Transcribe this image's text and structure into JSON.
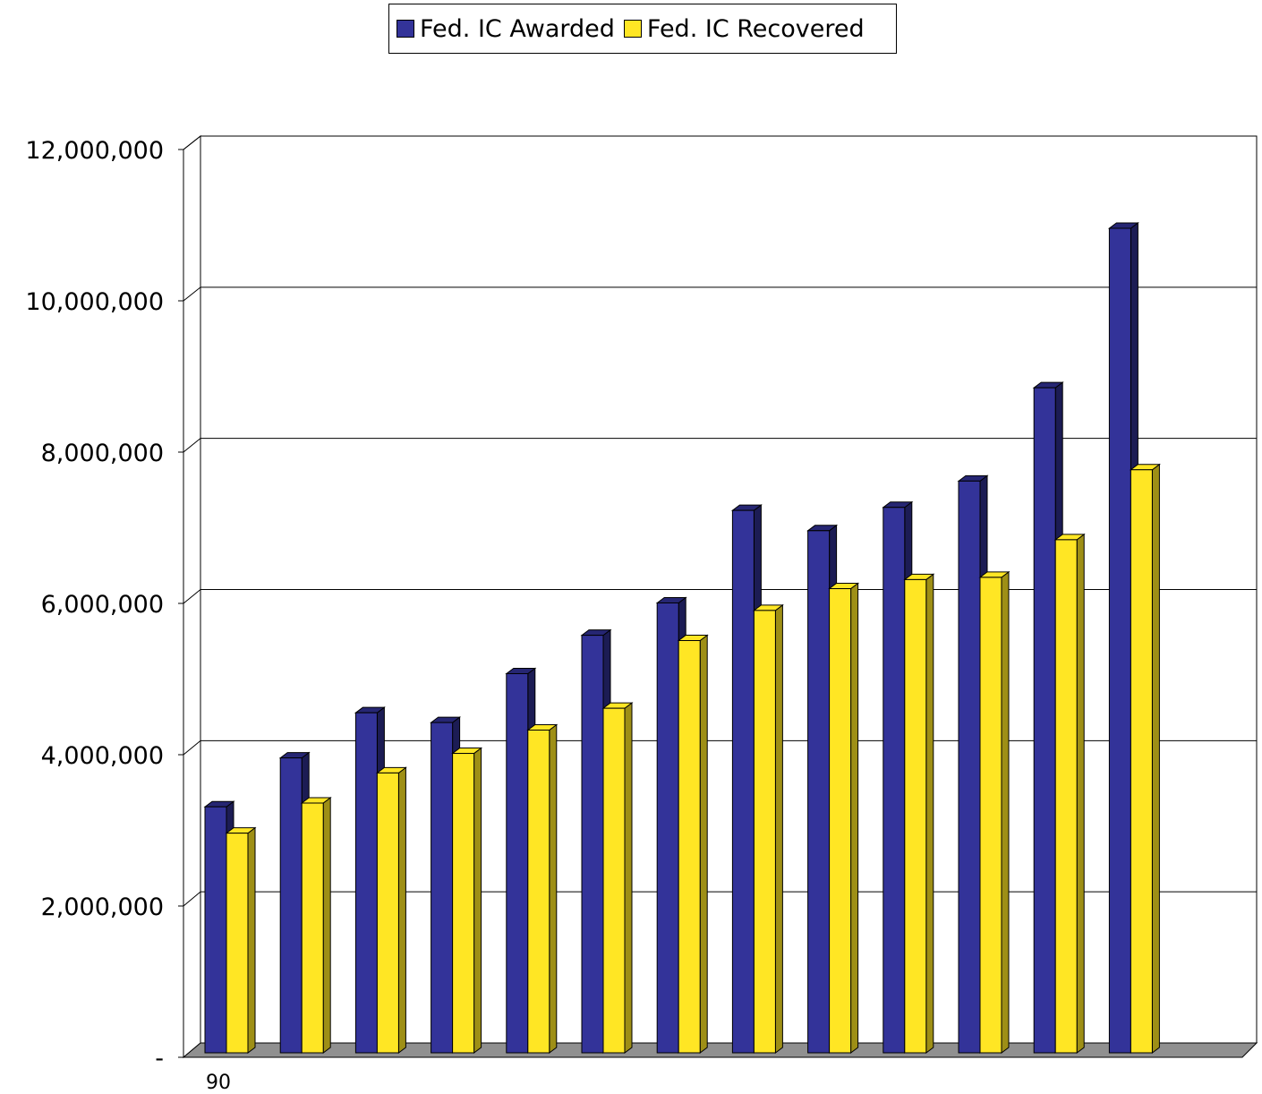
{
  "chart_data": {
    "type": "bar",
    "categories": [
      "90",
      "",
      "",
      "",
      "",
      "",
      "",
      "",
      "",
      "",
      "",
      "",
      ""
    ],
    "series": [
      {
        "name": "Fed. IC Awarded",
        "color": "#333399",
        "values": [
          3270000,
          3920000,
          4520000,
          4390000,
          5040000,
          5550000,
          5980000,
          7210000,
          6940000,
          7250000,
          7600000,
          8840000,
          10960000
        ]
      },
      {
        "name": "Fed. IC Recovered",
        "color": "#FFE624",
        "values": [
          2920000,
          3320000,
          3720000,
          3980000,
          4290000,
          4580000,
          5480000,
          5880000,
          6170000,
          6290000,
          6320000,
          6820000,
          7750000
        ]
      }
    ],
    "ylim": [
      0,
      12000000
    ],
    "yticks": [
      0,
      2000000,
      4000000,
      6000000,
      8000000,
      10000000,
      12000000
    ],
    "ytick_labels": [
      "-",
      "2,000,000",
      "4,000,000",
      "6,000,000",
      "8,000,000",
      "10,000,000",
      "12,000,000"
    ],
    "grid": true,
    "legend_position": "top-center",
    "title": "",
    "xlabel": "",
    "ylabel": ""
  }
}
